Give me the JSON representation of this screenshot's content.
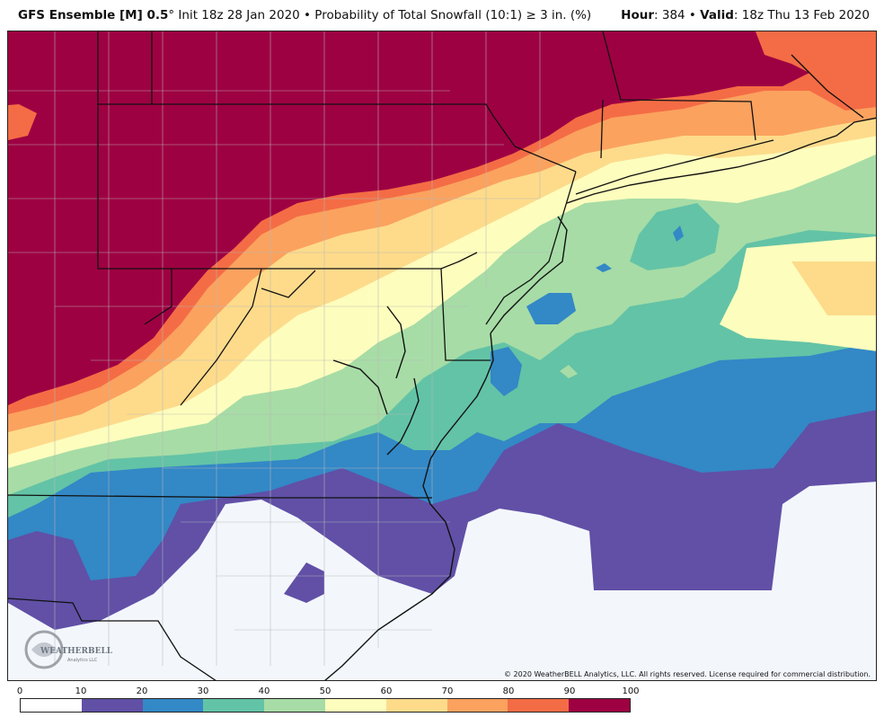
{
  "header": {
    "model": "GFS Ensemble [M] 0.5",
    "degree": "°",
    "init": " Init 18z 28 Jan 2020 • Probability of Total Snowfall (10:1) ≥ 3 in. (%)",
    "hour_label": "Hour",
    "hour_value": ": 384 • ",
    "valid_label": "Valid",
    "valid_value": ": 18z Thu 13 Feb 2020"
  },
  "copyright": "© 2020 WeatherBELL Analytics, LLC. All rights reserved. License required for commercial distribution.",
  "logo": {
    "name": "WeatherBELL",
    "sub": "Analytics LLC"
  },
  "legend": {
    "labels": [
      "0",
      "10",
      "20",
      "30",
      "40",
      "50",
      "60",
      "70",
      "80",
      "90",
      "100"
    ],
    "colors": [
      "#ffffff",
      "#6150a6",
      "#3388c6",
      "#63c3a6",
      "#a7dca6",
      "#fdfdbd",
      "#fddb8b",
      "#fba25f",
      "#f46c45",
      "#9e0142"
    ]
  },
  "colors": {
    "ocean_low": "#f3f7fc",
    "state_lines": "#111111",
    "county_lines": "#b8b8b8"
  }
}
